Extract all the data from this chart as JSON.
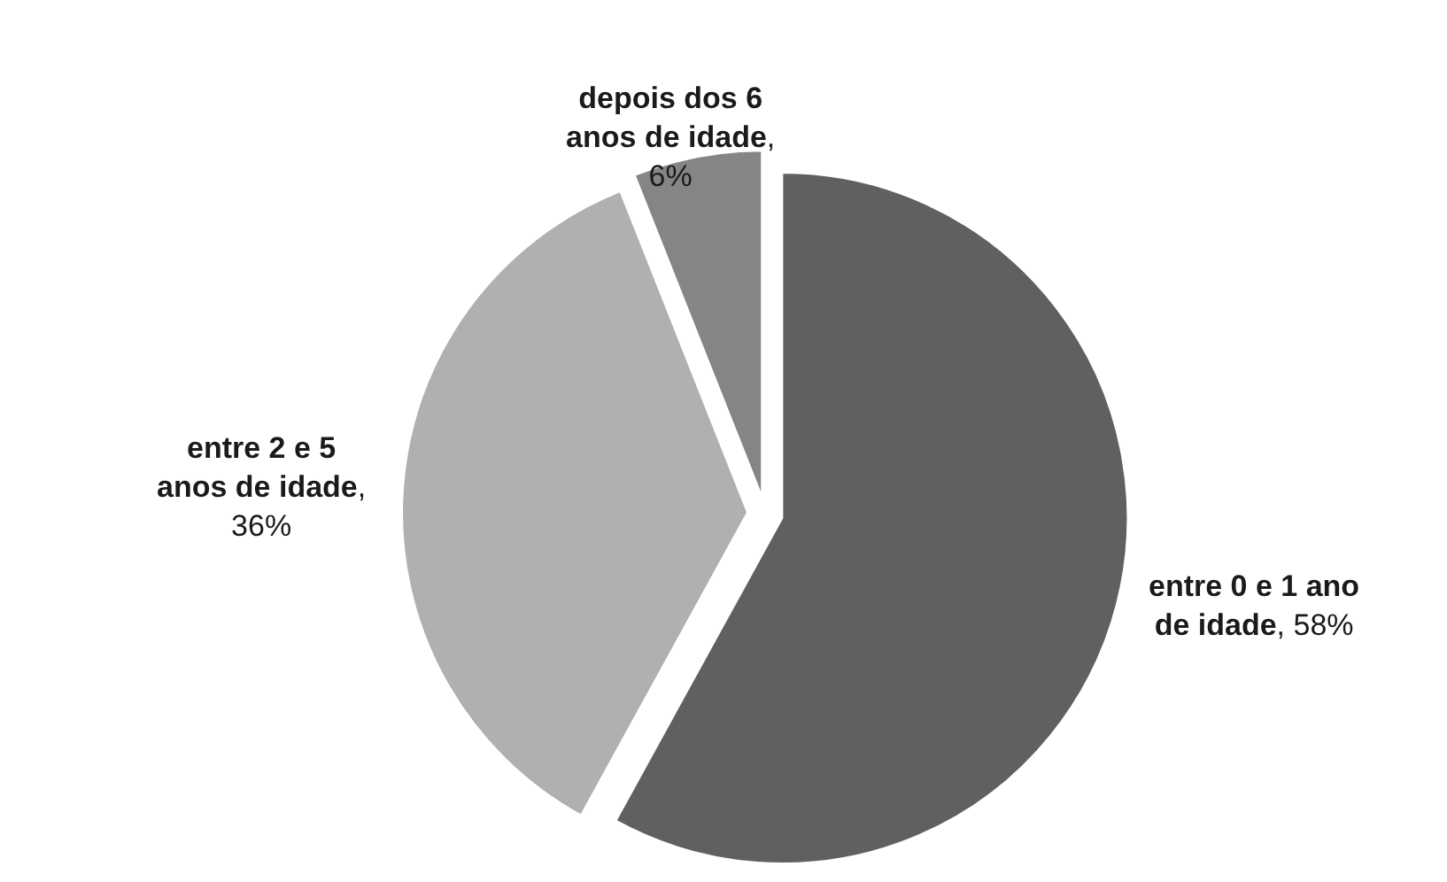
{
  "chart_data": {
    "type": "pie",
    "categories": [
      "entre 0 e 1 ano de idade",
      "entre 2 e 5 anos de idade",
      "depois dos 6 anos de idade"
    ],
    "values": [
      58,
      36,
      6
    ],
    "value_labels": [
      ", 58%",
      ", 36%",
      ", 6%"
    ],
    "colors": [
      "#606060",
      "#b0b0b0",
      "#858585"
    ]
  }
}
